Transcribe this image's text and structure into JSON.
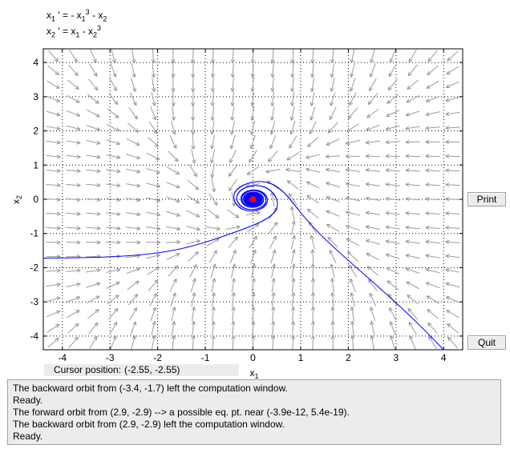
{
  "equations": {
    "eq1": {
      "var": "x",
      "sub": "1",
      "rhs_a": " ' = - x",
      "rhs_a_sub": "1",
      "rhs_a_sup": "3",
      "rhs_b": " - x",
      "rhs_b_sub": "2"
    },
    "eq2": {
      "var": "x",
      "sub": "2",
      "rhs_a": " ' = x",
      "rhs_a_sub": "1",
      "rhs_b": " - x",
      "rhs_b_sub": "2",
      "rhs_b_sup": "3"
    }
  },
  "buttons": {
    "print": "Print",
    "quit": "Quit"
  },
  "cursor": {
    "label": "Cursor position:",
    "value": "(-2.55, -2.55)"
  },
  "messages": [
    "The backward orbit from (-3.4, -1.7) left the computation window.",
    "Ready.",
    "The forward orbit from (2.9, -2.9) --> a possible eq. pt. near (-3.9e-12, 5.4e-19).",
    "The backward orbit from (2.9, -2.9) left the computation window.",
    "Ready."
  ],
  "chart_data": {
    "type": "phase-portrait",
    "xlabel": "x",
    "xlabel_sub": "1",
    "ylabel": "x",
    "ylabel_sub": "2",
    "xlim": [
      -4.4,
      4.4
    ],
    "ylim": [
      -4.4,
      4.4
    ],
    "xticks": [
      -4,
      -3,
      -2,
      -1,
      0,
      1,
      2,
      3,
      4
    ],
    "yticks": [
      -4,
      -3,
      -2,
      -1,
      0,
      1,
      2,
      3,
      4
    ],
    "grid": true,
    "equilibrium": {
      "x": 0,
      "y": 0,
      "color": "#ff0000"
    },
    "colors": {
      "orbit": "#0000ff",
      "field": "#9a9a9a",
      "axes": "#000000"
    }
  }
}
